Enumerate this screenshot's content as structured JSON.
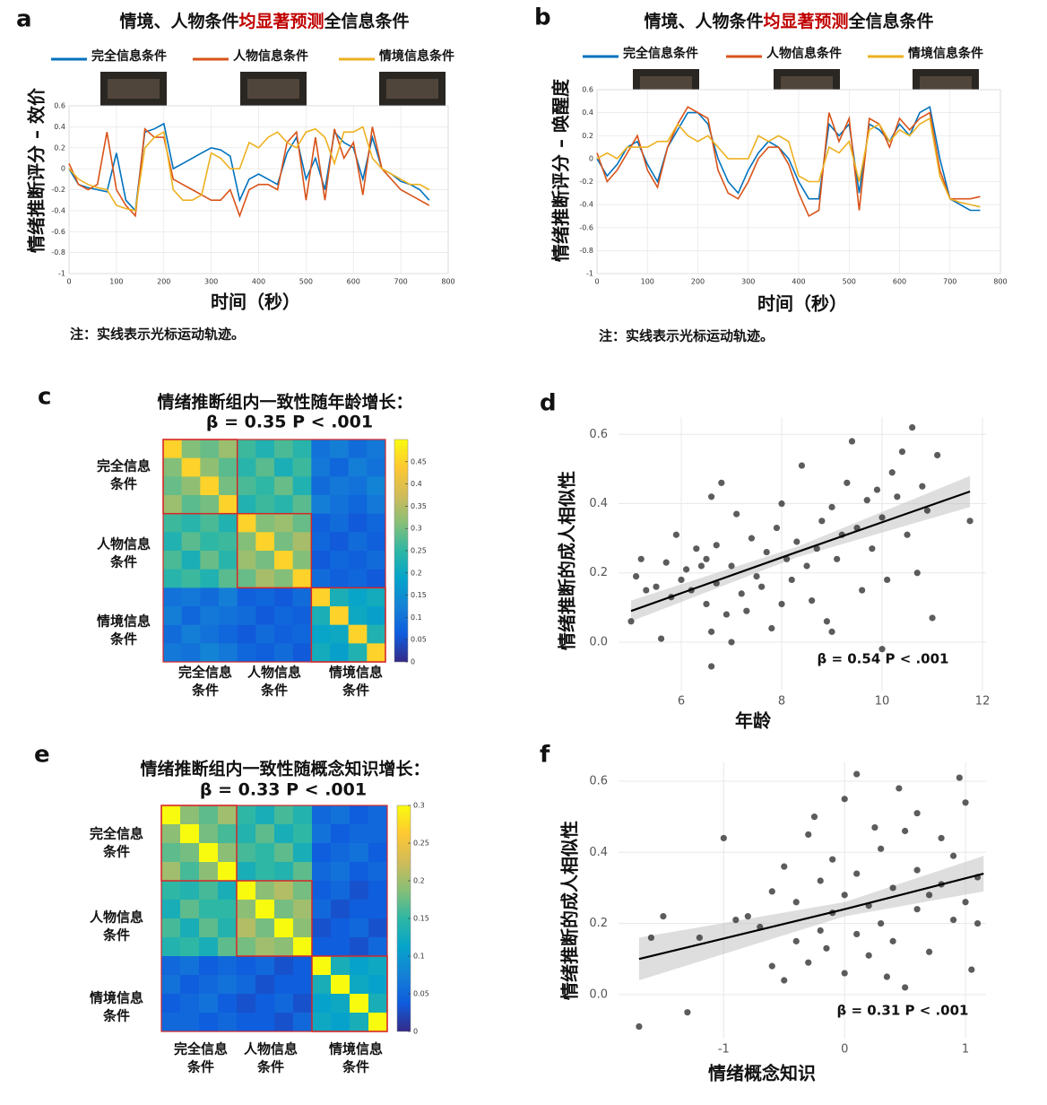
{
  "chart_data": [
    {
      "type": "line",
      "panel_label": "a",
      "title_parts": [
        {
          "text": "情境、人物条件",
          "color": "#111111"
        },
        {
          "text": "均显著预测",
          "color": "#c00000"
        },
        {
          "text": "全信息条件",
          "color": "#111111"
        }
      ],
      "ylabel": "情绪推断评分 – 效价",
      "xlabel": "时间（秒）",
      "note": "注：实线表示光标运动轨迹。",
      "x": [
        0,
        20,
        40,
        60,
        80,
        100,
        120,
        140,
        160,
        180,
        200,
        220,
        240,
        260,
        280,
        300,
        320,
        340,
        360,
        380,
        400,
        420,
        440,
        460,
        480,
        500,
        520,
        540,
        560,
        580,
        600,
        620,
        640,
        660,
        680,
        700,
        720,
        740,
        760
      ],
      "xlim": [
        0,
        800
      ],
      "ylim": [
        -1,
        0.6
      ],
      "xticks": [
        0,
        100,
        200,
        300,
        400,
        500,
        600,
        700,
        800
      ],
      "yticks": [
        -1,
        -0.8,
        -0.6,
        -0.4,
        -0.2,
        0,
        0.2,
        0.4,
        0.6
      ],
      "grid": true,
      "legend_position": "top",
      "series": [
        {
          "name": "完全信息条件",
          "color": "#0072bd",
          "values": [
            0,
            -0.15,
            -0.18,
            -0.2,
            -0.22,
            0.15,
            -0.3,
            -0.4,
            0.35,
            0.38,
            0.43,
            0.0,
            0.05,
            0.1,
            0.15,
            0.2,
            0.18,
            0.12,
            -0.3,
            -0.1,
            -0.05,
            -0.1,
            -0.15,
            0.15,
            0.3,
            -0.1,
            0.1,
            -0.2,
            0.35,
            0.25,
            0.2,
            -0.1,
            0.3,
            0.0,
            -0.05,
            -0.12,
            -0.15,
            -0.2,
            -0.3
          ]
        },
        {
          "name": "人物信息条件",
          "color": "#d95319",
          "values": [
            0.05,
            -0.15,
            -0.2,
            -0.15,
            0.35,
            -0.2,
            -0.35,
            -0.45,
            0.38,
            0.3,
            0.3,
            -0.1,
            -0.15,
            -0.2,
            -0.25,
            -0.3,
            -0.3,
            -0.2,
            -0.45,
            -0.2,
            -0.15,
            -0.15,
            -0.2,
            0.25,
            0.35,
            -0.3,
            0.3,
            -0.3,
            0.38,
            0.1,
            0.25,
            -0.25,
            0.4,
            0.0,
            -0.1,
            -0.2,
            -0.25,
            -0.3,
            -0.35
          ]
        },
        {
          "name": "情境信息条件",
          "color": "#edb120",
          "values": [
            0,
            -0.1,
            -0.15,
            -0.18,
            -0.2,
            -0.35,
            -0.38,
            -0.4,
            0.2,
            0.3,
            0.35,
            -0.2,
            -0.3,
            -0.3,
            -0.25,
            0.15,
            0.1,
            0,
            0,
            0.25,
            0.2,
            0.3,
            0.35,
            0.25,
            0.2,
            0.35,
            0.38,
            0.3,
            0.05,
            0.35,
            0.35,
            0.4,
            0.1,
            0,
            -0.05,
            -0.1,
            -0.15,
            -0.15,
            -0.2
          ]
        }
      ]
    },
    {
      "type": "line",
      "panel_label": "b",
      "title_parts": [
        {
          "text": "情境、人物条件",
          "color": "#111111"
        },
        {
          "text": "均显著预测",
          "color": "#c00000"
        },
        {
          "text": "全信息条件",
          "color": "#111111"
        }
      ],
      "ylabel": "情绪推断评分 – 唤醒度",
      "xlabel": "时间（秒）",
      "note": "注：实线表示光标运动轨迹。",
      "x": [
        0,
        20,
        40,
        60,
        80,
        100,
        120,
        140,
        160,
        180,
        200,
        220,
        240,
        260,
        280,
        300,
        320,
        340,
        360,
        380,
        400,
        420,
        440,
        460,
        480,
        500,
        520,
        540,
        560,
        580,
        600,
        620,
        640,
        660,
        680,
        700,
        720,
        740,
        760
      ],
      "xlim": [
        0,
        800
      ],
      "ylim": [
        -1,
        0.6
      ],
      "xticks": [
        0,
        100,
        200,
        300,
        400,
        500,
        600,
        700,
        800
      ],
      "yticks": [
        -1,
        -0.8,
        -0.6,
        -0.4,
        -0.2,
        0,
        0.2,
        0.4,
        0.6
      ],
      "grid": true,
      "legend_position": "top",
      "series": [
        {
          "name": "完全信息条件",
          "color": "#0072bd",
          "values": [
            0,
            -0.15,
            -0.05,
            0.1,
            0.15,
            -0.05,
            -0.2,
            0.1,
            0.25,
            0.4,
            0.4,
            0.3,
            0,
            -0.2,
            -0.3,
            -0.1,
            0.05,
            0.15,
            0.1,
            0,
            -0.2,
            -0.35,
            -0.35,
            0.3,
            0.2,
            0.3,
            -0.3,
            0.3,
            0.25,
            0.15,
            0.3,
            0.2,
            0.4,
            0.45,
            0,
            -0.35,
            -0.4,
            -0.45,
            -0.45
          ]
        },
        {
          "name": "人物信息条件",
          "color": "#d95319",
          "values": [
            0.05,
            -0.2,
            -0.1,
            0.05,
            0.2,
            -0.1,
            -0.25,
            0.1,
            0.3,
            0.45,
            0.4,
            0.35,
            -0.1,
            -0.3,
            -0.35,
            -0.2,
            0,
            0.1,
            0.1,
            -0.05,
            -0.3,
            -0.5,
            -0.45,
            0.4,
            0.15,
            0.35,
            -0.45,
            0.35,
            0.3,
            0.1,
            0.35,
            0.25,
            0.35,
            0.4,
            -0.1,
            -0.35,
            -0.35,
            -0.35,
            -0.33
          ]
        },
        {
          "name": "情境信息条件",
          "color": "#edb120",
          "values": [
            0,
            0.05,
            0,
            0.1,
            0.1,
            0.1,
            0.15,
            0.15,
            0.3,
            0.2,
            0.15,
            0.2,
            0.1,
            0,
            0,
            0,
            0.2,
            0.15,
            0.2,
            0.15,
            -0.15,
            -0.2,
            -0.2,
            0.1,
            0.05,
            0.15,
            -0.2,
            0.25,
            0.3,
            0.15,
            0.25,
            0.2,
            0.3,
            0.35,
            -0.15,
            -0.35,
            -0.38,
            -0.4,
            -0.42
          ]
        }
      ]
    },
    {
      "type": "heatmap",
      "panel_label": "c",
      "title": "情绪推断组内一致性随年龄增长：",
      "subtitle": "β = 0.35  P < .001",
      "subtitle_color": "#c00000",
      "group_labels": [
        [
          "完全信息",
          "条件"
        ],
        [
          "人物信息",
          "条件"
        ],
        [
          "情境信息",
          "条件"
        ]
      ],
      "border_color": "#d62728",
      "colorscale": [
        "#352a87",
        "#0f5cdd",
        "#1481d6",
        "#06a4ca",
        "#2eb7a4",
        "#87bf77",
        "#d1bb59",
        "#fec832",
        "#f9fb0e"
      ],
      "zlim": [
        0,
        0.5
      ],
      "zticks": [
        0,
        0.05,
        0.1,
        0.15,
        0.2,
        0.25,
        0.3,
        0.35,
        0.4,
        0.45
      ],
      "matrix": [
        [
          0.45,
          0.31,
          0.29,
          0.33,
          0.26,
          0.23,
          0.27,
          0.24,
          0.1,
          0.12,
          0.09,
          0.11
        ],
        [
          0.31,
          0.45,
          0.32,
          0.28,
          0.24,
          0.28,
          0.22,
          0.26,
          0.11,
          0.08,
          0.12,
          0.1
        ],
        [
          0.29,
          0.32,
          0.45,
          0.3,
          0.27,
          0.25,
          0.29,
          0.23,
          0.09,
          0.11,
          0.1,
          0.13
        ],
        [
          0.33,
          0.28,
          0.3,
          0.45,
          0.23,
          0.26,
          0.24,
          0.28,
          0.12,
          0.1,
          0.08,
          0.11
        ],
        [
          0.26,
          0.24,
          0.27,
          0.23,
          0.45,
          0.31,
          0.33,
          0.29,
          0.07,
          0.09,
          0.06,
          0.08
        ],
        [
          0.23,
          0.28,
          0.25,
          0.26,
          0.31,
          0.45,
          0.3,
          0.34,
          0.08,
          0.06,
          0.09,
          0.07
        ],
        [
          0.27,
          0.22,
          0.29,
          0.24,
          0.33,
          0.3,
          0.45,
          0.31,
          0.06,
          0.08,
          0.07,
          0.09
        ],
        [
          0.24,
          0.26,
          0.23,
          0.28,
          0.29,
          0.34,
          0.31,
          0.45,
          0.09,
          0.07,
          0.08,
          0.06
        ],
        [
          0.1,
          0.11,
          0.09,
          0.12,
          0.07,
          0.08,
          0.06,
          0.09,
          0.45,
          0.22,
          0.19,
          0.21
        ],
        [
          0.12,
          0.08,
          0.11,
          0.1,
          0.09,
          0.06,
          0.08,
          0.07,
          0.22,
          0.45,
          0.2,
          0.18
        ],
        [
          0.09,
          0.12,
          0.1,
          0.08,
          0.06,
          0.09,
          0.07,
          0.08,
          0.19,
          0.2,
          0.45,
          0.23
        ],
        [
          0.11,
          0.1,
          0.13,
          0.11,
          0.08,
          0.07,
          0.09,
          0.06,
          0.21,
          0.18,
          0.23,
          0.45
        ]
      ]
    },
    {
      "type": "scatter",
      "panel_label": "d",
      "xlabel": "年龄",
      "ylabel": "情绪推断的成人相似性",
      "annotation": "β = 0.54  P < .001",
      "color": "#333333",
      "grid": true,
      "xlim": [
        4.75,
        12.07
      ],
      "ylim": [
        -0.14,
        0.65
      ],
      "xticks": [
        6,
        8,
        10,
        12
      ],
      "yticks": [
        {
          "value": 0,
          "label": "0.0"
        },
        0.2,
        0.4,
        0.6
      ],
      "x": [
        5.0,
        5.1,
        5.2,
        5.3,
        5.5,
        5.6,
        5.7,
        5.8,
        5.9,
        6.0,
        6.1,
        6.2,
        6.3,
        6.4,
        6.5,
        6.5,
        6.6,
        6.6,
        6.7,
        6.7,
        6.8,
        6.9,
        7.0,
        7.1,
        7.2,
        7.3,
        7.4,
        7.5,
        7.6,
        7.7,
        7.8,
        7.9,
        8.0,
        8.1,
        8.2,
        8.3,
        8.4,
        8.5,
        8.6,
        8.7,
        8.8,
        8.9,
        9.0,
        9.1,
        9.2,
        9.3,
        9.4,
        9.5,
        9.6,
        9.7,
        9.8,
        9.9,
        10.0,
        10.1,
        10.2,
        10.3,
        10.4,
        10.5,
        10.6,
        10.7,
        10.8,
        10.9,
        11.0,
        11.1,
        11.75,
        9.0,
        8.0,
        7.0,
        6.6,
        10.0
      ],
      "y": [
        0.06,
        0.19,
        0.24,
        0.15,
        0.16,
        0.01,
        0.23,
        0.13,
        0.31,
        0.18,
        0.21,
        0.15,
        0.27,
        0.22,
        0.11,
        0.24,
        0.03,
        -0.07,
        0.28,
        0.17,
        0.46,
        0.08,
        0.22,
        0.37,
        0.14,
        0.09,
        0.3,
        0.19,
        0.16,
        0.26,
        0.04,
        0.33,
        0.11,
        0.24,
        0.18,
        0.29,
        0.51,
        0.22,
        0.12,
        0.27,
        0.35,
        0.06,
        0.39,
        0.24,
        0.31,
        0.46,
        0.58,
        0.33,
        0.15,
        0.41,
        0.27,
        0.44,
        0.36,
        0.18,
        0.49,
        0.42,
        0.55,
        0.31,
        0.62,
        0.2,
        0.45,
        0.38,
        0.07,
        0.54,
        0.35,
        0.03,
        0.4,
        0.0,
        0.42,
        -0.02
      ],
      "fit": {
        "x": [
          5.0,
          8.3,
          11.75
        ],
        "y": [
          0.09,
          0.26,
          0.435
        ],
        "lower": [
          0.06,
          0.245,
          0.39
        ],
        "upper": [
          0.12,
          0.275,
          0.48
        ]
      }
    },
    {
      "type": "heatmap",
      "panel_label": "e",
      "title": "情绪推断组内一致性随概念知识增长：",
      "subtitle": "β = 0.33  P < .001",
      "subtitle_color": "#c00000",
      "group_labels": [
        [
          "完全信息",
          "条件"
        ],
        [
          "人物信息",
          "条件"
        ],
        [
          "情境信息",
          "条件"
        ]
      ],
      "border_color": "#d62728",
      "colorscale": [
        "#352a87",
        "#0f5cdd",
        "#1481d6",
        "#06a4ca",
        "#2eb7a4",
        "#87bf77",
        "#d1bb59",
        "#fec832",
        "#f9fb0e"
      ],
      "zlim": [
        0,
        0.3
      ],
      "zticks": [
        0,
        0.05,
        0.1,
        0.15,
        0.2,
        0.25,
        0.3
      ],
      "matrix": [
        [
          0.3,
          0.19,
          0.17,
          0.2,
          0.15,
          0.13,
          0.16,
          0.14,
          0.05,
          0.06,
          0.04,
          0.05
        ],
        [
          0.19,
          0.3,
          0.18,
          0.16,
          0.14,
          0.17,
          0.13,
          0.15,
          0.06,
          0.04,
          0.05,
          0.05
        ],
        [
          0.17,
          0.18,
          0.3,
          0.19,
          0.16,
          0.15,
          0.17,
          0.13,
          0.04,
          0.05,
          0.06,
          0.04
        ],
        [
          0.2,
          0.16,
          0.19,
          0.3,
          0.13,
          0.15,
          0.14,
          0.17,
          0.05,
          0.06,
          0.04,
          0.05
        ],
        [
          0.15,
          0.14,
          0.16,
          0.13,
          0.3,
          0.19,
          0.21,
          0.18,
          0.04,
          0.05,
          0.03,
          0.04
        ],
        [
          0.13,
          0.17,
          0.15,
          0.15,
          0.19,
          0.3,
          0.18,
          0.2,
          0.05,
          0.03,
          0.04,
          0.04
        ],
        [
          0.16,
          0.13,
          0.17,
          0.14,
          0.21,
          0.18,
          0.3,
          0.19,
          0.03,
          0.04,
          0.05,
          0.03
        ],
        [
          0.14,
          0.15,
          0.13,
          0.17,
          0.18,
          0.2,
          0.19,
          0.3,
          0.04,
          0.04,
          0.03,
          0.05
        ],
        [
          0.05,
          0.06,
          0.04,
          0.05,
          0.04,
          0.05,
          0.03,
          0.04,
          0.3,
          0.13,
          0.11,
          0.12
        ],
        [
          0.06,
          0.04,
          0.05,
          0.06,
          0.05,
          0.03,
          0.04,
          0.04,
          0.13,
          0.3,
          0.12,
          0.11
        ],
        [
          0.04,
          0.05,
          0.06,
          0.04,
          0.03,
          0.04,
          0.05,
          0.03,
          0.11,
          0.12,
          0.3,
          0.13
        ],
        [
          0.05,
          0.05,
          0.04,
          0.05,
          0.04,
          0.04,
          0.03,
          0.05,
          0.12,
          0.11,
          0.13,
          0.3
        ]
      ]
    },
    {
      "type": "scatter",
      "panel_label": "f",
      "xlabel": "情绪概念知识",
      "ylabel": "情绪推断的成人相似性",
      "annotation": "β = 0.31  P < .001",
      "color": "#333333",
      "grid": true,
      "xlim": [
        -1.87,
        1.17
      ],
      "ylim": [
        -0.124,
        0.653
      ],
      "xticks": [
        -1,
        0,
        1
      ],
      "yticks": [
        {
          "value": 0,
          "label": "0.0"
        },
        0.2,
        0.4,
        0.6
      ],
      "x": [
        -1.7,
        -1.6,
        -1.5,
        -1.3,
        -1.2,
        -1.0,
        -0.9,
        -0.8,
        -0.7,
        -0.6,
        -0.5,
        -0.5,
        -0.4,
        -0.4,
        -0.3,
        -0.3,
        -0.2,
        -0.2,
        -0.1,
        -0.1,
        0.0,
        0.0,
        0.0,
        0.1,
        0.1,
        0.1,
        0.2,
        0.2,
        0.3,
        0.3,
        0.4,
        0.4,
        0.5,
        0.5,
        0.6,
        0.6,
        0.6,
        0.7,
        0.7,
        0.8,
        0.8,
        0.9,
        0.9,
        1.0,
        1.0,
        1.05,
        1.1,
        1.1,
        0.95,
        -0.25,
        0.45,
        -0.6,
        0.25,
        -0.15,
        0.35
      ],
      "y": [
        -0.09,
        0.16,
        0.22,
        -0.05,
        0.16,
        0.44,
        0.21,
        0.22,
        0.19,
        0.29,
        0.36,
        0.04,
        0.15,
        0.26,
        0.45,
        0.09,
        0.32,
        0.18,
        0.38,
        0.23,
        0.28,
        0.06,
        0.55,
        0.17,
        0.34,
        0.62,
        0.25,
        0.11,
        0.41,
        0.2,
        0.3,
        0.15,
        0.46,
        0.02,
        0.35,
        0.24,
        0.51,
        0.28,
        0.12,
        0.44,
        0.31,
        0.21,
        0.39,
        0.54,
        0.26,
        0.07,
        0.33,
        0.2,
        0.61,
        0.5,
        0.58,
        0.08,
        0.47,
        0.13,
        0.05
      ],
      "fit": {
        "x": [
          -1.7,
          0,
          1.15
        ],
        "y": [
          0.1,
          0.24,
          0.34
        ],
        "lower": [
          0.04,
          0.22,
          0.29
        ],
        "upper": [
          0.16,
          0.26,
          0.39
        ]
      }
    }
  ]
}
